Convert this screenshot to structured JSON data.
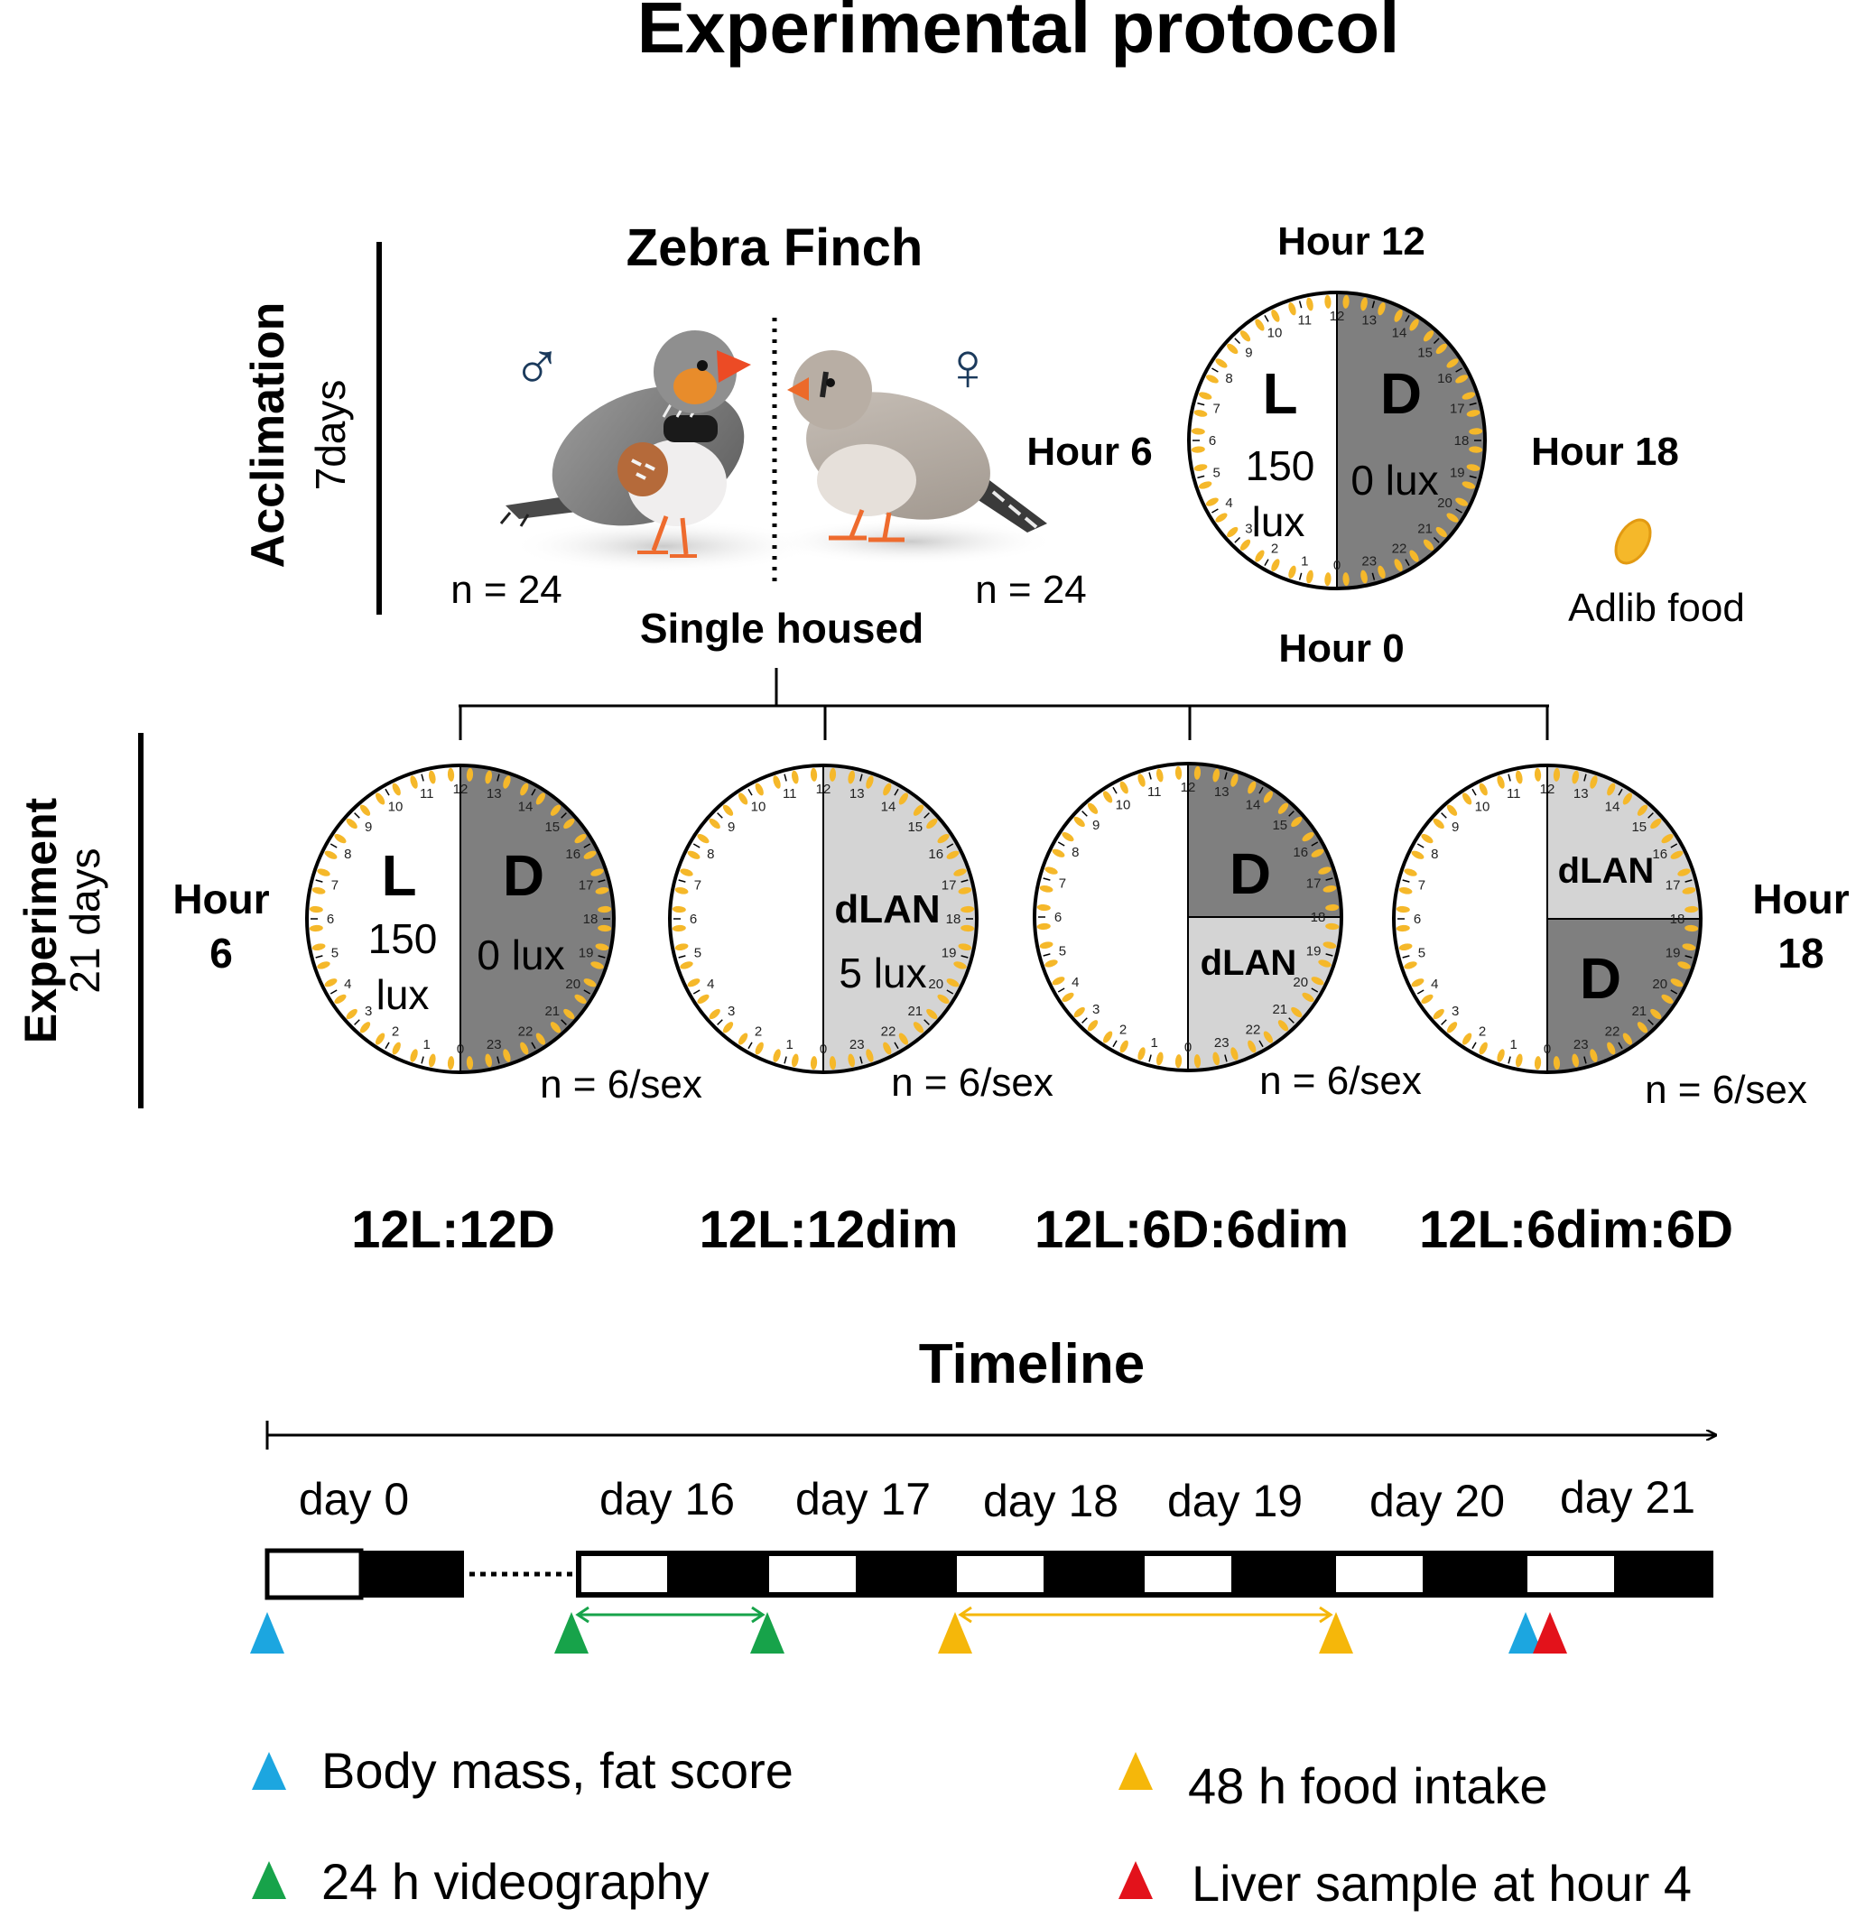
{
  "title": "Experimental protocol",
  "acclimation": {
    "label": "Acclimation",
    "duration": "7days",
    "species": "Zebra Finch",
    "male_symbol": "♂",
    "female_symbol": "♀",
    "male_n": "n = 24",
    "female_n": "n = 24",
    "housing": "Single housed",
    "clock": {
      "hour_top": "Hour 12",
      "hour_left": "Hour 6",
      "hour_right": "Hour 18",
      "hour_bottom": "Hour 0",
      "light_letter": "L",
      "light_value": "150",
      "light_unit": "lux",
      "dark_letter": "D",
      "dark_value": "0 lux"
    },
    "food_label": "Adlib food"
  },
  "experiment": {
    "label": "Experiment",
    "duration": "21 days",
    "hour_left": [
      "Hour",
      "6"
    ],
    "hour_right": [
      "Hour",
      "18"
    ],
    "groups": [
      {
        "name": "12L:12D",
        "n": "n = 6/sex",
        "light_letter": "L",
        "light_value": "150",
        "light_unit": "lux",
        "dark_letter": "D",
        "dark_value": "0 lux"
      },
      {
        "name": "12L:12dim",
        "n": "n = 6/sex",
        "dim_label": "dLAN",
        "dim_value": "5 lux"
      },
      {
        "name": "12L:6D:6dim",
        "n": "n = 6/sex",
        "dark_letter": "D",
        "dim_label": "dLAN"
      },
      {
        "name": "12L:6dim:6D",
        "n": "n = 6/sex",
        "dim_label": "dLAN",
        "dark_letter": "D"
      }
    ]
  },
  "timeline": {
    "title": "Timeline",
    "days": [
      "day 0",
      "day 16",
      "day 17",
      "day 18",
      "day 19",
      "day 20",
      "day 21"
    ]
  },
  "legend": [
    {
      "label": "Body mass, fat score",
      "color": "#1ca6e0"
    },
    {
      "label": "24 h videography",
      "color": "#17a34a"
    },
    {
      "label": "48 h food intake",
      "color": "#f5b70a"
    },
    {
      "label": "Liver sample at hour 4",
      "color": "#e3121b"
    }
  ],
  "colors": {
    "dark": "#7f7f7f",
    "dim": "#d4d4d4",
    "food": "#f5b82a",
    "body_mass": "#1ca6e0",
    "videography": "#17a34a",
    "food_intake": "#f5b70a",
    "liver": "#e3121b"
  }
}
